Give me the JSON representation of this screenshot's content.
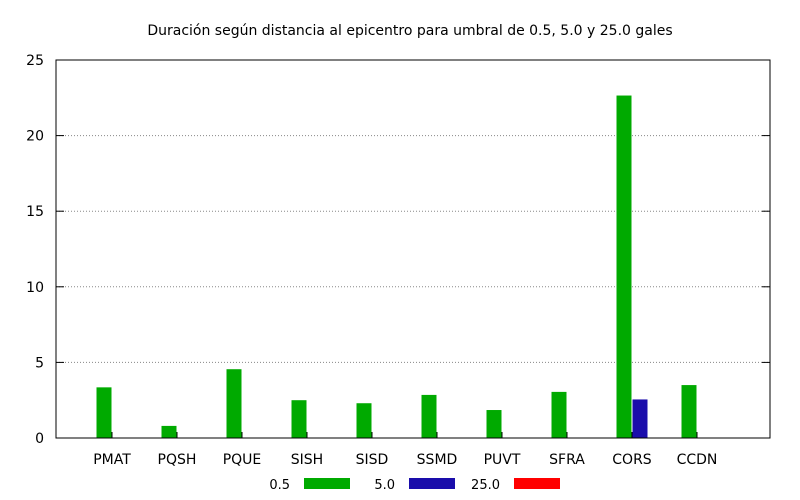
{
  "chart_data": {
    "type": "bar",
    "title": "Duración según distancia al epicentro para umbral de 0.5, 5.0 y 25.0 gales",
    "xlabel": "",
    "ylabel": "",
    "categories": [
      "PMAT",
      "PQSH",
      "PQUE",
      "SISH",
      "SISD",
      "SSMD",
      "PUVT",
      "SFRA",
      "CORS",
      "CCDN"
    ],
    "ylim": [
      0,
      25
    ],
    "yticks": [
      0,
      5,
      10,
      15,
      20,
      25
    ],
    "grid": true,
    "legend_position": "bottom",
    "series": [
      {
        "name": "0.5",
        "color": "#00aa00",
        "values": [
          3.35,
          0.8,
          4.55,
          2.5,
          2.3,
          2.85,
          1.85,
          3.05,
          22.65,
          3.5
        ]
      },
      {
        "name": "5.0",
        "color": "#1a0dab",
        "values": [
          0,
          0,
          0,
          0,
          0,
          0,
          0,
          0,
          2.55,
          0
        ]
      },
      {
        "name": "25.0",
        "color": "#ff0000",
        "values": [
          0,
          0,
          0,
          0,
          0,
          0,
          0,
          0,
          0,
          0
        ]
      }
    ]
  }
}
